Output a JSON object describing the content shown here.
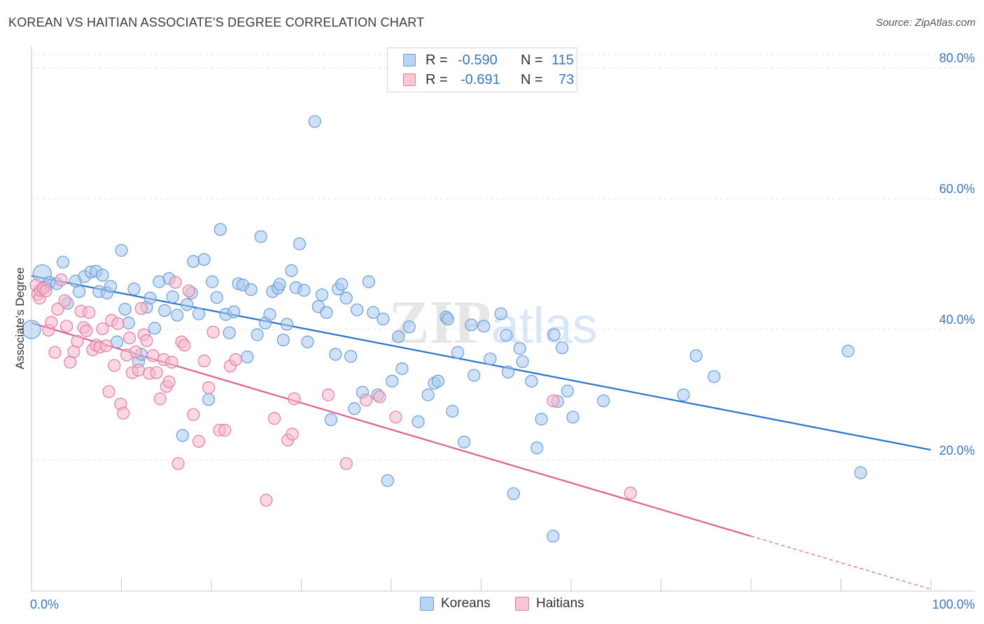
{
  "title": "KOREAN VS HAITIAN ASSOCIATE'S DEGREE CORRELATION CHART",
  "source": "Source: ZipAtlas.com",
  "watermark": "ZIPatlas",
  "legend": {
    "koreans": {
      "r_label": "R =",
      "r_value": "-0.590",
      "n_label": "N =",
      "n_value": "115"
    },
    "haitians": {
      "r_label": "R =",
      "r_value": "-0.691",
      "n_label": "N =",
      "n_value": "73"
    }
  },
  "chart_data": {
    "type": "scatter",
    "xlabel": "",
    "ylabel": "Associate's Degree",
    "xlim": [
      0,
      100
    ],
    "ylim": [
      0,
      80
    ],
    "x_tick_labels": {
      "left": "0.0%",
      "right": "100.0%"
    },
    "y_ticks": [
      20,
      40,
      60,
      80
    ],
    "y_tick_labels": [
      "20.0%",
      "40.0%",
      "60.0%",
      "80.0%"
    ],
    "grid": true,
    "legend_position": "top-center",
    "colors": {
      "koreans_fill": "#a8c8f0",
      "koreans_stroke": "#6a9ed8",
      "koreans_line": "#2a72cc",
      "haitians_fill": "#f6b8cc",
      "haitians_stroke": "#e87ca0",
      "haitians_line": "#e0608e"
    },
    "series": [
      {
        "name": "Koreans",
        "trend": {
          "x0": 0,
          "y0": 48.2,
          "x1": 100,
          "y1": 21.6
        },
        "points": [
          [
            0.0,
            40.0
          ],
          [
            1.2,
            48.5
          ],
          [
            1.5,
            46.5
          ],
          [
            2.0,
            47.2
          ],
          [
            3.5,
            50.3
          ],
          [
            2.8,
            47.0
          ],
          [
            4.0,
            44.0
          ],
          [
            5.3,
            45.8
          ],
          [
            4.9,
            47.4
          ],
          [
            5.9,
            48.1
          ],
          [
            6.6,
            48.8
          ],
          [
            7.2,
            48.9
          ],
          [
            7.5,
            45.8
          ],
          [
            7.9,
            48.3
          ],
          [
            8.4,
            45.6
          ],
          [
            8.8,
            46.6
          ],
          [
            9.5,
            38.1
          ],
          [
            10.0,
            52.1
          ],
          [
            10.4,
            43.1
          ],
          [
            10.8,
            41.0
          ],
          [
            11.4,
            46.2
          ],
          [
            11.9,
            35.1
          ],
          [
            12.2,
            36.2
          ],
          [
            12.8,
            43.4
          ],
          [
            13.2,
            44.8
          ],
          [
            13.7,
            40.2
          ],
          [
            14.2,
            47.3
          ],
          [
            14.8,
            42.9
          ],
          [
            15.3,
            47.8
          ],
          [
            15.7,
            45.0
          ],
          [
            16.2,
            42.2
          ],
          [
            16.8,
            23.8
          ],
          [
            17.3,
            43.8
          ],
          [
            17.8,
            45.6
          ],
          [
            18.0,
            50.4
          ],
          [
            18.6,
            42.4
          ],
          [
            19.2,
            50.7
          ],
          [
            19.7,
            29.3
          ],
          [
            20.1,
            47.3
          ],
          [
            20.6,
            44.9
          ],
          [
            21.0,
            55.3
          ],
          [
            21.6,
            42.3
          ],
          [
            22.0,
            39.5
          ],
          [
            22.5,
            42.7
          ],
          [
            23.0,
            47.0
          ],
          [
            23.5,
            46.8
          ],
          [
            24.0,
            35.8
          ],
          [
            24.4,
            46.1
          ],
          [
            25.1,
            39.2
          ],
          [
            25.5,
            54.2
          ],
          [
            26.0,
            41.0
          ],
          [
            26.5,
            42.3
          ],
          [
            26.8,
            45.8
          ],
          [
            27.4,
            46.3
          ],
          [
            27.6,
            46.9
          ],
          [
            28.0,
            38.4
          ],
          [
            28.4,
            40.8
          ],
          [
            28.9,
            49.0
          ],
          [
            29.4,
            46.4
          ],
          [
            29.8,
            53.1
          ],
          [
            30.3,
            46.0
          ],
          [
            30.7,
            38.1
          ],
          [
            31.5,
            71.8
          ],
          [
            31.9,
            43.5
          ],
          [
            32.3,
            45.3
          ],
          [
            32.8,
            42.6
          ],
          [
            33.3,
            26.2
          ],
          [
            33.8,
            36.2
          ],
          [
            34.1,
            46.2
          ],
          [
            34.5,
            46.9
          ],
          [
            35.0,
            44.8
          ],
          [
            35.5,
            35.9
          ],
          [
            35.9,
            27.9
          ],
          [
            36.2,
            43.0
          ],
          [
            36.8,
            30.4
          ],
          [
            37.5,
            47.3
          ],
          [
            38.0,
            42.6
          ],
          [
            38.5,
            30.0
          ],
          [
            39.1,
            41.6
          ],
          [
            39.6,
            16.9
          ],
          [
            40.1,
            32.1
          ],
          [
            40.8,
            38.9
          ],
          [
            41.2,
            34.0
          ],
          [
            42.0,
            40.4
          ],
          [
            43.0,
            25.9
          ],
          [
            44.1,
            30.0
          ],
          [
            44.8,
            31.8
          ],
          [
            45.2,
            32.1
          ],
          [
            46.1,
            41.9
          ],
          [
            46.3,
            41.6
          ],
          [
            46.8,
            27.5
          ],
          [
            47.4,
            36.5
          ],
          [
            48.1,
            22.8
          ],
          [
            48.9,
            40.7
          ],
          [
            49.2,
            33.0
          ],
          [
            50.3,
            40.5
          ],
          [
            51.0,
            35.5
          ],
          [
            52.2,
            42.4
          ],
          [
            52.8,
            39.1
          ],
          [
            53.0,
            33.5
          ],
          [
            53.6,
            14.9
          ],
          [
            54.3,
            37.1
          ],
          [
            55.6,
            32.1
          ],
          [
            56.2,
            21.9
          ],
          [
            56.7,
            26.3
          ],
          [
            58.1,
            39.2
          ],
          [
            59.0,
            37.2
          ],
          [
            59.6,
            30.6
          ],
          [
            60.2,
            26.6
          ],
          [
            63.6,
            29.1
          ],
          [
            72.5,
            30.0
          ],
          [
            73.9,
            36.0
          ],
          [
            75.9,
            32.8
          ],
          [
            90.8,
            36.7
          ],
          [
            92.2,
            18.1
          ],
          [
            58.0,
            8.4
          ],
          [
            54.6,
            35.1
          ],
          [
            58.5,
            29.0
          ]
        ]
      },
      {
        "name": "Haitians",
        "trend": {
          "x0": 0,
          "y0": 41.0,
          "x1": 80,
          "y1": 8.4
        },
        "trend_dashed_to": {
          "x": 100,
          "y": 0.3
        },
        "points": [
          [
            0.5,
            46.8
          ],
          [
            0.7,
            45.4
          ],
          [
            0.9,
            44.8
          ],
          [
            1.0,
            46.0
          ],
          [
            1.3,
            46.3
          ],
          [
            1.6,
            45.9
          ],
          [
            1.9,
            39.9
          ],
          [
            2.2,
            41.1
          ],
          [
            2.6,
            36.5
          ],
          [
            2.9,
            43.1
          ],
          [
            3.3,
            47.6
          ],
          [
            3.7,
            44.4
          ],
          [
            3.9,
            40.5
          ],
          [
            4.3,
            35.0
          ],
          [
            4.7,
            36.6
          ],
          [
            5.1,
            38.2
          ],
          [
            5.5,
            42.8
          ],
          [
            5.8,
            40.3
          ],
          [
            6.1,
            39.8
          ],
          [
            6.4,
            42.6
          ],
          [
            6.8,
            36.9
          ],
          [
            7.2,
            37.6
          ],
          [
            7.6,
            37.3
          ],
          [
            7.9,
            40.1
          ],
          [
            8.3,
            37.5
          ],
          [
            8.6,
            30.5
          ],
          [
            8.9,
            41.4
          ],
          [
            9.2,
            34.5
          ],
          [
            9.6,
            40.9
          ],
          [
            9.9,
            28.6
          ],
          [
            10.2,
            27.2
          ],
          [
            10.6,
            36.1
          ],
          [
            10.9,
            38.7
          ],
          [
            11.2,
            33.4
          ],
          [
            11.6,
            36.6
          ],
          [
            11.9,
            33.8
          ],
          [
            12.2,
            43.2
          ],
          [
            12.5,
            39.2
          ],
          [
            12.8,
            38.3
          ],
          [
            13.1,
            33.3
          ],
          [
            13.5,
            36.0
          ],
          [
            13.9,
            33.4
          ],
          [
            14.3,
            29.4
          ],
          [
            14.7,
            35.4
          ],
          [
            15.0,
            31.3
          ],
          [
            15.3,
            32.0
          ],
          [
            15.6,
            35.0
          ],
          [
            16.0,
            47.2
          ],
          [
            16.3,
            19.5
          ],
          [
            16.7,
            38.1
          ],
          [
            17.0,
            37.6
          ],
          [
            17.5,
            45.9
          ],
          [
            18.0,
            27.0
          ],
          [
            18.6,
            22.9
          ],
          [
            19.2,
            35.2
          ],
          [
            19.7,
            31.1
          ],
          [
            20.2,
            39.6
          ],
          [
            20.9,
            24.6
          ],
          [
            21.5,
            24.6
          ],
          [
            22.1,
            34.4
          ],
          [
            22.7,
            35.4
          ],
          [
            26.1,
            13.9
          ],
          [
            27.0,
            26.4
          ],
          [
            28.5,
            23.1
          ],
          [
            29.0,
            24.0
          ],
          [
            29.2,
            29.4
          ],
          [
            33.0,
            30.0
          ],
          [
            35.0,
            19.5
          ],
          [
            37.2,
            29.2
          ],
          [
            38.7,
            29.7
          ],
          [
            40.5,
            26.6
          ],
          [
            58.0,
            29.1
          ],
          [
            66.6,
            15.0
          ]
        ]
      }
    ]
  }
}
